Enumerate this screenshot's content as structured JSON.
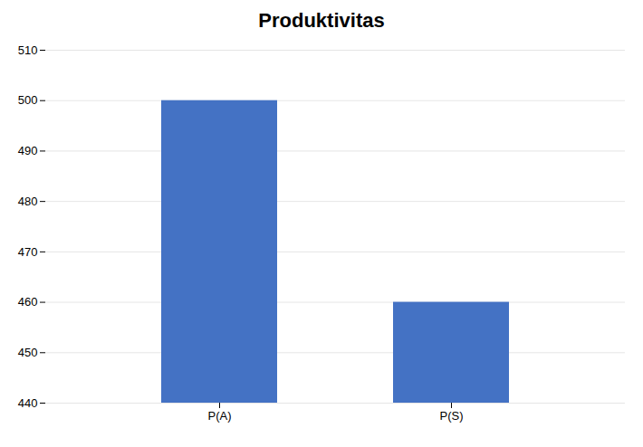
{
  "chart_data": {
    "type": "bar",
    "title": "Produktivitas",
    "categories": [
      "P(A)",
      "P(S)"
    ],
    "values": [
      500,
      460
    ],
    "color": "#4472C4",
    "ylim": [
      440,
      510
    ],
    "yticks": [
      440,
      450,
      460,
      470,
      480,
      490,
      500,
      510
    ],
    "grid": true
  }
}
